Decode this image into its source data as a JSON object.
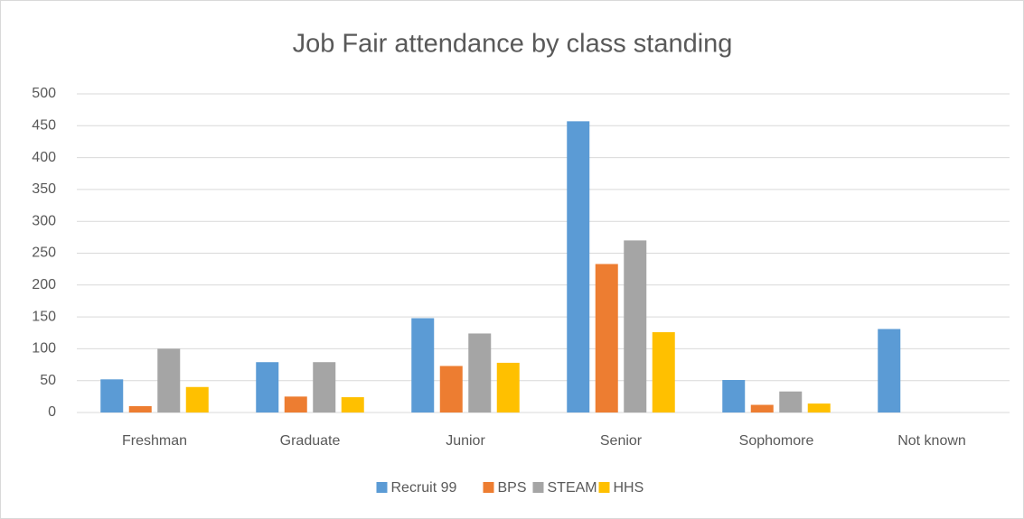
{
  "chart_data": {
    "type": "bar",
    "title": "Job Fair attendance by class standing",
    "categories": [
      "Freshman",
      "Graduate",
      "Junior",
      "Senior",
      "Sophomore",
      "Not known"
    ],
    "series": [
      {
        "name": "Recruit 99",
        "color": "#5b9bd5",
        "values": [
          52,
          79,
          148,
          457,
          51,
          131
        ]
      },
      {
        "name": "BPS",
        "color": "#ed7d31",
        "values": [
          10,
          25,
          73,
          233,
          12,
          null
        ]
      },
      {
        "name": "STEAM",
        "color": "#a5a5a5",
        "values": [
          100,
          79,
          124,
          270,
          33,
          null
        ]
      },
      {
        "name": "HHS",
        "color": "#ffc000",
        "values": [
          40,
          24,
          78,
          126,
          14,
          null
        ]
      }
    ],
    "ylim": [
      0,
      500
    ],
    "yticks": [
      0,
      50,
      100,
      150,
      200,
      250,
      300,
      350,
      400,
      450,
      500
    ],
    "grid": true,
    "legend": "bottom"
  }
}
